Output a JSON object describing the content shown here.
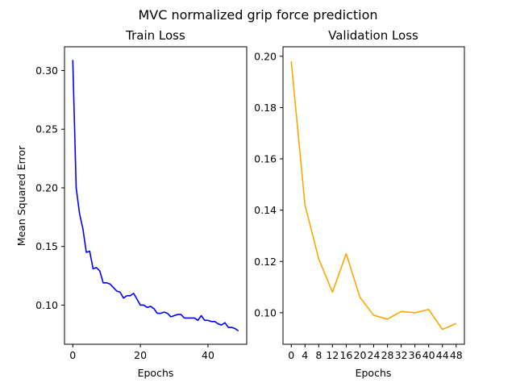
{
  "figure": {
    "suptitle": "MVC normalized grip force prediction"
  },
  "chart_data": [
    {
      "type": "line",
      "title": "Train Loss",
      "xlabel": "Epochs",
      "ylabel": "Mean Squared Error",
      "xlim": [
        -2.45,
        51.45
      ],
      "ylim": [
        0.0666,
        0.3203
      ],
      "xticks": [
        0,
        20,
        40
      ],
      "yticks": [
        0.1,
        0.15,
        0.2,
        0.25,
        0.3
      ],
      "ytick_labels": [
        "0.10",
        "0.15",
        "0.20",
        "0.25",
        "0.30"
      ],
      "grid": false,
      "legend": "none",
      "series": [
        {
          "color": "#0000ff",
          "x": [
            0,
            1,
            2,
            3,
            4,
            5,
            6,
            7,
            8,
            9,
            10,
            11,
            12,
            13,
            14,
            15,
            16,
            17,
            18,
            19,
            20,
            21,
            22,
            23,
            24,
            25,
            26,
            27,
            28,
            29,
            30,
            31,
            32,
            33,
            34,
            35,
            36,
            37,
            38,
            39,
            40,
            41,
            42,
            43,
            44,
            45,
            46,
            47,
            48,
            49
          ],
          "y": [
            0.309,
            0.2,
            0.178,
            0.165,
            0.145,
            0.146,
            0.131,
            0.132,
            0.129,
            0.119,
            0.119,
            0.118,
            0.115,
            0.112,
            0.111,
            0.106,
            0.108,
            0.108,
            0.11,
            0.105,
            0.1,
            0.1,
            0.098,
            0.099,
            0.097,
            0.093,
            0.093,
            0.094,
            0.093,
            0.09,
            0.091,
            0.092,
            0.092,
            0.089,
            0.089,
            0.089,
            0.089,
            0.087,
            0.091,
            0.087,
            0.087,
            0.086,
            0.086,
            0.084,
            0.083,
            0.085,
            0.081,
            0.081,
            0.08,
            0.078
          ]
        }
      ]
    },
    {
      "type": "line",
      "title": "Validation Loss",
      "xlabel": "Epochs",
      "ylabel": "",
      "xlim": [
        -2.4,
        50.4
      ],
      "ylim": [
        0.0877,
        0.2037
      ],
      "xticks": [
        0,
        4,
        8,
        12,
        16,
        20,
        24,
        28,
        32,
        36,
        40,
        44,
        48
      ],
      "yticks": [
        0.1,
        0.12,
        0.14,
        0.16,
        0.18,
        0.2
      ],
      "ytick_labels": [
        "0.10",
        "0.12",
        "0.14",
        "0.16",
        "0.18",
        "0.20"
      ],
      "grid": false,
      "legend": "none",
      "series": [
        {
          "color": "#ffa500",
          "x": [
            0,
            4,
            8,
            12,
            16,
            20,
            24,
            28,
            32,
            36,
            40,
            44,
            48
          ],
          "y": [
            0.198,
            0.142,
            0.121,
            0.108,
            0.123,
            0.106,
            0.099,
            0.0975,
            0.1005,
            0.1,
            0.1013,
            0.0935,
            0.0958
          ]
        }
      ]
    }
  ]
}
